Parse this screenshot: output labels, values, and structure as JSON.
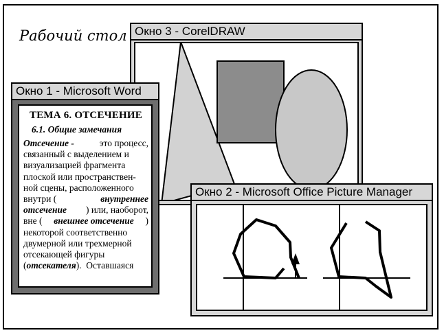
{
  "desktop": {
    "title": "Рабочий стол"
  },
  "window3": {
    "title": "Окно 3 - CorelDRAW"
  },
  "window1": {
    "title": "Окно 1 - Microsoft Word",
    "heading": "ТЕМА 6.  ОТСЕЧЕНИЕ",
    "subheading": "6.1.  Общие замечания",
    "lines": [
      [
        {
          "t": "Отсечение -",
          "s": "bi"
        },
        {
          "t": " это процесс,",
          "s": ""
        }
      ],
      [
        {
          "t": "связанный с выделением и",
          "s": ""
        }
      ],
      [
        {
          "t": "визуализацией фрагмента",
          "s": ""
        }
      ],
      [
        {
          "t": "плоской или пространствен-",
          "s": ""
        }
      ],
      [
        {
          "t": "ной сцены, расположенного",
          "s": ""
        }
      ],
      [
        {
          "t": "внутри (",
          "s": ""
        },
        {
          "t": "внутреннее",
          "s": "bi"
        }
      ],
      [
        {
          "t": "отсечение",
          "s": "bi"
        },
        {
          "t": ") или, наоборот,",
          "s": ""
        }
      ],
      [
        {
          "t": "вне (",
          "s": ""
        },
        {
          "t": "внешнее отсечение",
          "s": "bi"
        },
        {
          "t": ")",
          "s": ""
        }
      ],
      [
        {
          "t": "некоторой соответственно",
          "s": ""
        }
      ],
      [
        {
          "t": "двумерной или трехмерной",
          "s": ""
        }
      ],
      [
        {
          "t": "отсекающей фигуры",
          "s": ""
        }
      ],
      [
        {
          "t": "(",
          "s": ""
        },
        {
          "t": "отсекателя",
          "s": "bi"
        },
        {
          "t": ").  Оставшаяся",
          "s": ""
        }
      ]
    ]
  },
  "window2": {
    "title": "Окно 2 - Microsoft Office Picture Manager"
  },
  "colors": {
    "window_frame": "#d7d7d7",
    "word_frame": "#6e6e6e",
    "triangle": "#d2d2d2",
    "rectangle": "#8c8c8c",
    "ellipse": "#c8c8c8"
  }
}
